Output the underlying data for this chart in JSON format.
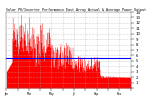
{
  "title": "Solar PV/Inverter Performance East Array Actual & Average Power Output",
  "bar_color": "#ff0000",
  "avg_line_color": "#0000ff",
  "background_color": "#ffffff",
  "grid_color": "#aaaaaa",
  "ylim": [
    0,
    14
  ],
  "avg_line_y": 5.5,
  "ytick_labels": [
    "14",
    "13",
    "12",
    "11",
    "10",
    "9",
    "8",
    "7",
    "6",
    "5",
    "4",
    "3",
    "2",
    "1",
    ""
  ],
  "ytick_vals": [
    14,
    13,
    12,
    11,
    10,
    9,
    8,
    7,
    6,
    5,
    4,
    3,
    2,
    1,
    0
  ],
  "figsize": [
    1.6,
    1.0
  ],
  "dpi": 100
}
